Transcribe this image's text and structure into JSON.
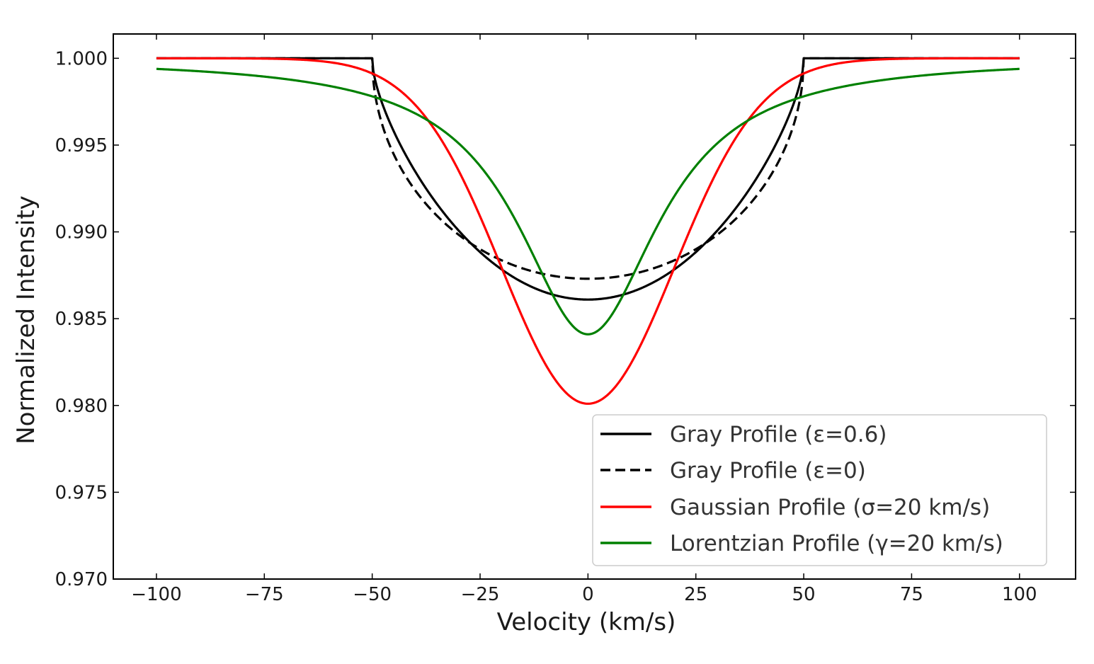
{
  "chart_data": {
    "type": "line",
    "title": "",
    "xlabel": "Velocity (km/s)",
    "ylabel": "Normalized Intensity",
    "xlim": [
      -110,
      113
    ],
    "ylim": [
      0.97,
      1.0014
    ],
    "xticks": [
      -100,
      -75,
      -50,
      -25,
      0,
      25,
      50,
      75,
      100
    ],
    "xtick_labels": [
      "−100",
      "−75",
      "−50",
      "−25",
      "0",
      "25",
      "50",
      "75",
      "100"
    ],
    "yticks": [
      0.97,
      0.975,
      0.98,
      0.985,
      0.99,
      0.995,
      1.0
    ],
    "ytick_labels": [
      "0.970",
      "0.975",
      "0.980",
      "0.985",
      "0.990",
      "0.995",
      "1.000"
    ],
    "grid": false,
    "legend_position": "lower-right",
    "x_range": [
      -100,
      100
    ],
    "vsini": 50,
    "series": [
      {
        "name": "Gray Profile (ε=0.6)",
        "kind": "gray",
        "epsilon": 0.6,
        "depth": 0.0139,
        "color": "#000000",
        "dashed": false
      },
      {
        "name": "Gray Profile (ε=0)",
        "kind": "gray",
        "epsilon": 0.0,
        "depth": 0.0127,
        "color": "#000000",
        "dashed": true
      },
      {
        "name": "Gaussian Profile (σ=20 km/s)",
        "kind": "gaussian",
        "sigma": 20,
        "depth": 0.0199,
        "color": "#ff0000",
        "dashed": false
      },
      {
        "name": "Lorentzian Profile (γ=20 km/s)",
        "kind": "lorentzian",
        "gamma": 20,
        "depth": 0.0159,
        "color": "#008000",
        "dashed": false
      }
    ]
  }
}
